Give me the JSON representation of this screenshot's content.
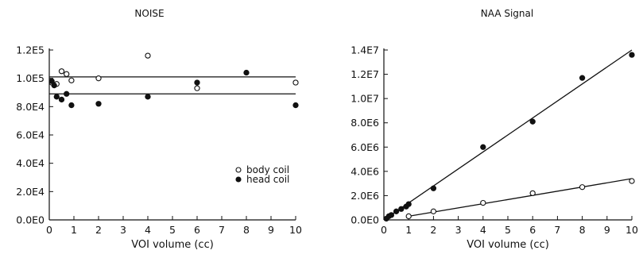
{
  "chart_data": [
    {
      "type": "scatter",
      "title": "NOISE",
      "xlabel": "VOI volume (cc)",
      "ylabel": "",
      "xlim": [
        0,
        10
      ],
      "ylim": [
        0,
        120000
      ],
      "xticks": [
        "0",
        "1",
        "2",
        "3",
        "4",
        "5",
        "6",
        "7",
        "8",
        "9",
        "10"
      ],
      "yticks": [
        "0.0E0",
        "2.0E4",
        "4.0E4",
        "6.0E4",
        "8.0E4",
        "1.0E5",
        "1.2E5"
      ],
      "legend": {
        "placement": "bottom-right"
      },
      "series": [
        {
          "name": "body coil",
          "marker": "open-circle",
          "x": [
            0.1,
            0.3,
            0.5,
            0.7,
            0.9,
            2,
            4,
            6,
            10
          ],
          "y": [
            97000,
            96000,
            105000,
            103000,
            98500,
            100000,
            116000,
            93000,
            97000
          ],
          "fit_line": {
            "x": [
              0,
              10
            ],
            "y": [
              101000,
              101000
            ]
          }
        },
        {
          "name": "head coil",
          "marker": "filled-circle",
          "x": [
            0.1,
            0.2,
            0.3,
            0.5,
            0.7,
            0.9,
            2,
            4,
            6,
            8,
            10
          ],
          "y": [
            98000,
            95000,
            87000,
            85000,
            89000,
            81000,
            82000,
            87000,
            97000,
            104000,
            81000
          ],
          "fit_line": {
            "x": [
              0,
              10
            ],
            "y": [
              89000,
              89000
            ]
          }
        }
      ]
    },
    {
      "type": "scatter",
      "title": "NAA Signal",
      "xlabel": "VOI volume (cc)",
      "ylabel": "",
      "xlim": [
        0,
        10
      ],
      "ylim": [
        0,
        14000000
      ],
      "xticks": [
        "0",
        "1",
        "2",
        "3",
        "4",
        "5",
        "6",
        "7",
        "8",
        "9",
        "10"
      ],
      "yticks": [
        "0.0E0",
        "2.0E6",
        "4.0E6",
        "6.0E6",
        "8.0E6",
        "1.0E7",
        "1.2E7",
        "1.4E7"
      ],
      "series": [
        {
          "name": "body coil",
          "marker": "open-circle",
          "x": [
            1,
            2,
            4,
            6,
            8,
            10
          ],
          "y": [
            300000,
            700000,
            1400000,
            2200000,
            2700000,
            3200000
          ],
          "fit_line": {
            "x": [
              1,
              10
            ],
            "y": [
              300000,
              3400000
            ]
          }
        },
        {
          "name": "head coil",
          "marker": "filled-circle",
          "x": [
            0.1,
            0.2,
            0.3,
            0.5,
            0.7,
            0.9,
            1,
            2,
            4,
            6,
            8,
            10
          ],
          "y": [
            100000,
            300000,
            400000,
            700000,
            900000,
            1100000,
            1300000,
            2600000,
            6000000,
            8100000,
            11700000,
            13600000
          ],
          "fit_line": {
            "x": [
              0,
              10
            ],
            "y": [
              0,
              14000000
            ]
          }
        }
      ]
    }
  ]
}
